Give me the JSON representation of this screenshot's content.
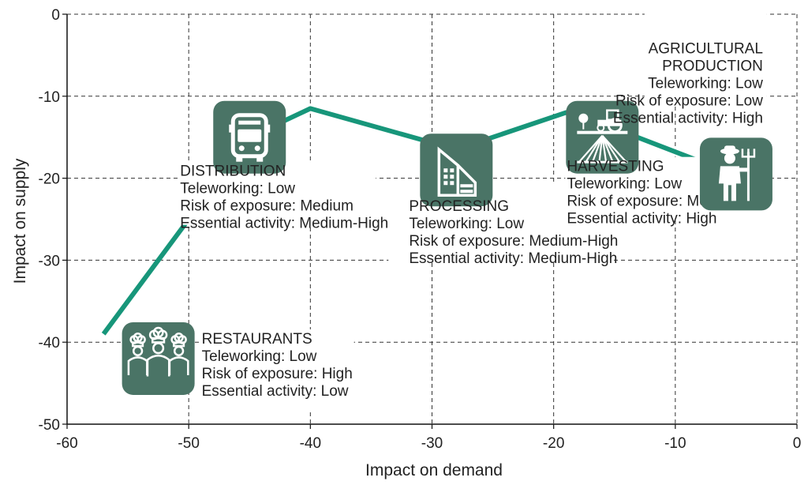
{
  "chart_data": {
    "type": "line",
    "title": "",
    "xlabel": "Impact on demand",
    "ylabel": "Impact on supply",
    "xlim": [
      -60,
      0
    ],
    "ylim": [
      -50,
      0
    ],
    "x_ticks": [
      -60,
      -50,
      -40,
      -30,
      -20,
      -10,
      0
    ],
    "y_ticks": [
      0,
      -10,
      -20,
      -30,
      -40,
      -50
    ],
    "grid": true,
    "line_color": "#17967a",
    "icon_color": "#4a7466",
    "series": [
      {
        "x": [
          -57,
          -45,
          -40,
          -28,
          -19,
          -14,
          -7
        ],
        "y": [
          -39,
          -15,
          -11.5,
          -16.5,
          -12,
          -14.5,
          -18.5
        ]
      }
    ],
    "stages": [
      {
        "x": -52.5,
        "y": -42,
        "icon": "chefs-icon",
        "title": "RESTAURANTS",
        "lines": [
          "Teleworking: Low",
          "Risk of exposure: High",
          "Essential activity: Low"
        ]
      },
      {
        "x": -45,
        "y": -15,
        "icon": "bus-icon",
        "title": "DISTRIBUTION",
        "lines": [
          "Teleworking: Low",
          "Risk of exposure: Medium",
          "Essential activity: Medium-High"
        ]
      },
      {
        "x": -28,
        "y": -19,
        "icon": "building-icon",
        "title": "PROCESSING",
        "lines": [
          "Teleworking: Low",
          "Risk of exposure: Medium-High",
          "Essential activity: Medium-High"
        ]
      },
      {
        "x": -16,
        "y": -15,
        "icon": "tractor-icon",
        "title": "HARVESTING",
        "lines": [
          "Teleworking: Low",
          "Risk of exposure: Medium",
          "High"
        ],
        "line_prefixes": [
          "",
          "",
          "Essential activity: "
        ]
      },
      {
        "x": -5,
        "y": -19.5,
        "icon": "farmer-icon",
        "title": "AGRICULTURAL PRODUCTION",
        "title_lines": [
          "AGRICULTURAL",
          "PRODUCTION"
        ],
        "lines": [
          "Teleworking: Low",
          "Risk of exposure: Low",
          "Essential activity: High"
        ]
      }
    ]
  }
}
